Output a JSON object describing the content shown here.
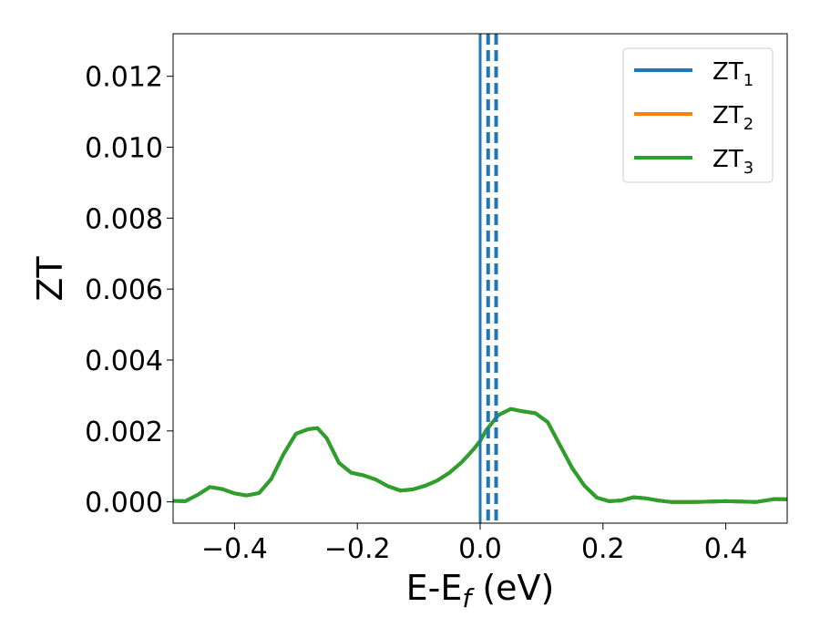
{
  "chart_data": {
    "type": "line",
    "title": "",
    "xlabel_main": "E-E",
    "xlabel_sub": "f",
    "xlabel_unit": " (eV)",
    "ylabel": "ZT",
    "xlim": [
      -0.5,
      0.5
    ],
    "ylim": [
      -0.0006,
      0.0132
    ],
    "xticks": [
      -0.4,
      -0.2,
      0.0,
      0.2,
      0.4
    ],
    "xtick_labels": [
      "−0.4",
      "−0.2",
      "0.0",
      "0.2",
      "0.4"
    ],
    "yticks": [
      0.0,
      0.002,
      0.004,
      0.006,
      0.008,
      0.01,
      0.012
    ],
    "ytick_labels": [
      "0.000",
      "0.002",
      "0.004",
      "0.006",
      "0.008",
      "0.010",
      "0.012"
    ],
    "grid": false,
    "legend_position": "top-right",
    "x": [
      -0.5,
      -0.48,
      -0.46,
      -0.44,
      -0.42,
      -0.4,
      -0.38,
      -0.36,
      -0.34,
      -0.32,
      -0.3,
      -0.28,
      -0.265,
      -0.25,
      -0.23,
      -0.21,
      -0.19,
      -0.17,
      -0.15,
      -0.13,
      -0.11,
      -0.09,
      -0.07,
      -0.05,
      -0.03,
      -0.01,
      0.0,
      0.01,
      0.03,
      0.05,
      0.07,
      0.09,
      0.11,
      0.13,
      0.15,
      0.17,
      0.19,
      0.21,
      0.23,
      0.25,
      0.27,
      0.29,
      0.31,
      0.35,
      0.4,
      0.45,
      0.48,
      0.5
    ],
    "series": [
      {
        "name_main": "ZT",
        "name_sub": "1",
        "color": "#1f77b4",
        "values": [
          3e-05,
          2e-05,
          0.0002,
          0.00042,
          0.00036,
          0.00024,
          0.00018,
          0.00025,
          0.00065,
          0.00135,
          0.00192,
          0.00205,
          0.00208,
          0.0018,
          0.0011,
          0.00082,
          0.00075,
          0.00063,
          0.00044,
          0.00032,
          0.00035,
          0.00045,
          0.0006,
          0.00082,
          0.00112,
          0.0015,
          0.00172,
          0.00202,
          0.00245,
          0.00262,
          0.00255,
          0.0025,
          0.00225,
          0.0016,
          0.00095,
          0.00045,
          0.00012,
          2e-05,
          4e-05,
          0.00013,
          0.0001,
          4e-05,
          0.0,
          0.0,
          2e-05,
          0.0,
          8e-05,
          7e-05
        ]
      },
      {
        "name_main": "ZT",
        "name_sub": "2",
        "color": "#ff7f0e",
        "values": [
          3e-05,
          2e-05,
          0.0002,
          0.00042,
          0.00036,
          0.00024,
          0.00018,
          0.00025,
          0.00065,
          0.00135,
          0.00192,
          0.00205,
          0.00208,
          0.0018,
          0.0011,
          0.00082,
          0.00075,
          0.00063,
          0.00044,
          0.00032,
          0.00035,
          0.00045,
          0.0006,
          0.00082,
          0.00112,
          0.0015,
          0.00172,
          0.00202,
          0.00245,
          0.00262,
          0.00255,
          0.0025,
          0.00225,
          0.0016,
          0.00095,
          0.00045,
          0.00012,
          2e-05,
          4e-05,
          0.00013,
          0.0001,
          4e-05,
          0.0,
          0.0,
          2e-05,
          0.0,
          8e-05,
          7e-05
        ]
      },
      {
        "name_main": "ZT",
        "name_sub": "3",
        "color": "#2ca02c",
        "values": [
          3e-05,
          2e-05,
          0.0002,
          0.00042,
          0.00036,
          0.00024,
          0.00018,
          0.00025,
          0.00065,
          0.00135,
          0.00192,
          0.00205,
          0.00208,
          0.0018,
          0.0011,
          0.00082,
          0.00075,
          0.00063,
          0.00044,
          0.00032,
          0.00035,
          0.00045,
          0.0006,
          0.00082,
          0.00112,
          0.0015,
          0.00172,
          0.00202,
          0.00245,
          0.00262,
          0.00255,
          0.0025,
          0.00225,
          0.0016,
          0.00095,
          0.00045,
          0.00012,
          2e-05,
          4e-05,
          0.00013,
          0.0001,
          4e-05,
          0.0,
          0.0,
          2e-05,
          0.0,
          8e-05,
          7e-05
        ]
      }
    ],
    "vlines": [
      {
        "x": 0.0,
        "color": "#000000",
        "style": "solid"
      },
      {
        "x": 0.0,
        "color": "#1f77b4",
        "style": "solid"
      },
      {
        "x": 0.013,
        "color": "#1f77b4",
        "style": "dashed"
      },
      {
        "x": 0.026,
        "color": "#1f77b4",
        "style": "dashed"
      }
    ]
  }
}
